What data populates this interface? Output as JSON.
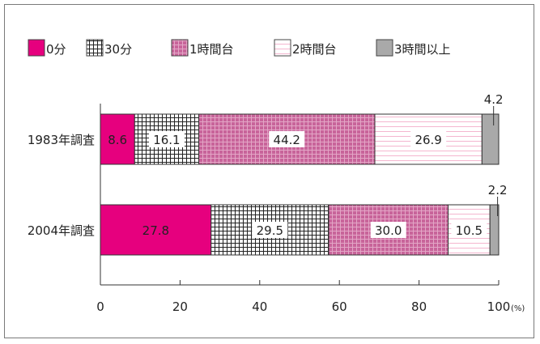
{
  "chart_data": {
    "type": "bar",
    "orientation": "horizontal",
    "stacked": true,
    "categories": [
      "1983年調査",
      "2004年調査"
    ],
    "series": [
      {
        "name": "0分",
        "values": [
          8.6,
          27.8
        ],
        "color": "#e6007e",
        "pattern": "solid"
      },
      {
        "name": "30分",
        "values": [
          16.1,
          29.5
        ],
        "color": "#ffffff",
        "pattern": "grid"
      },
      {
        "name": "1時間台",
        "values": [
          44.2,
          30.0
        ],
        "color": "#c8649a",
        "pattern": "dotted-grid"
      },
      {
        "name": "2時間台",
        "values": [
          26.9,
          10.5
        ],
        "color": "#ffffff",
        "pattern": "pink-lines"
      },
      {
        "name": "3時間以上",
        "values": [
          4.2,
          2.2
        ],
        "color": "#a9a9a9",
        "pattern": "solid"
      }
    ],
    "xlim": [
      0,
      100
    ],
    "xticks": [
      0,
      20,
      40,
      60,
      80,
      100
    ],
    "xunit": "(%)",
    "legend_position": "top",
    "grid": false
  }
}
